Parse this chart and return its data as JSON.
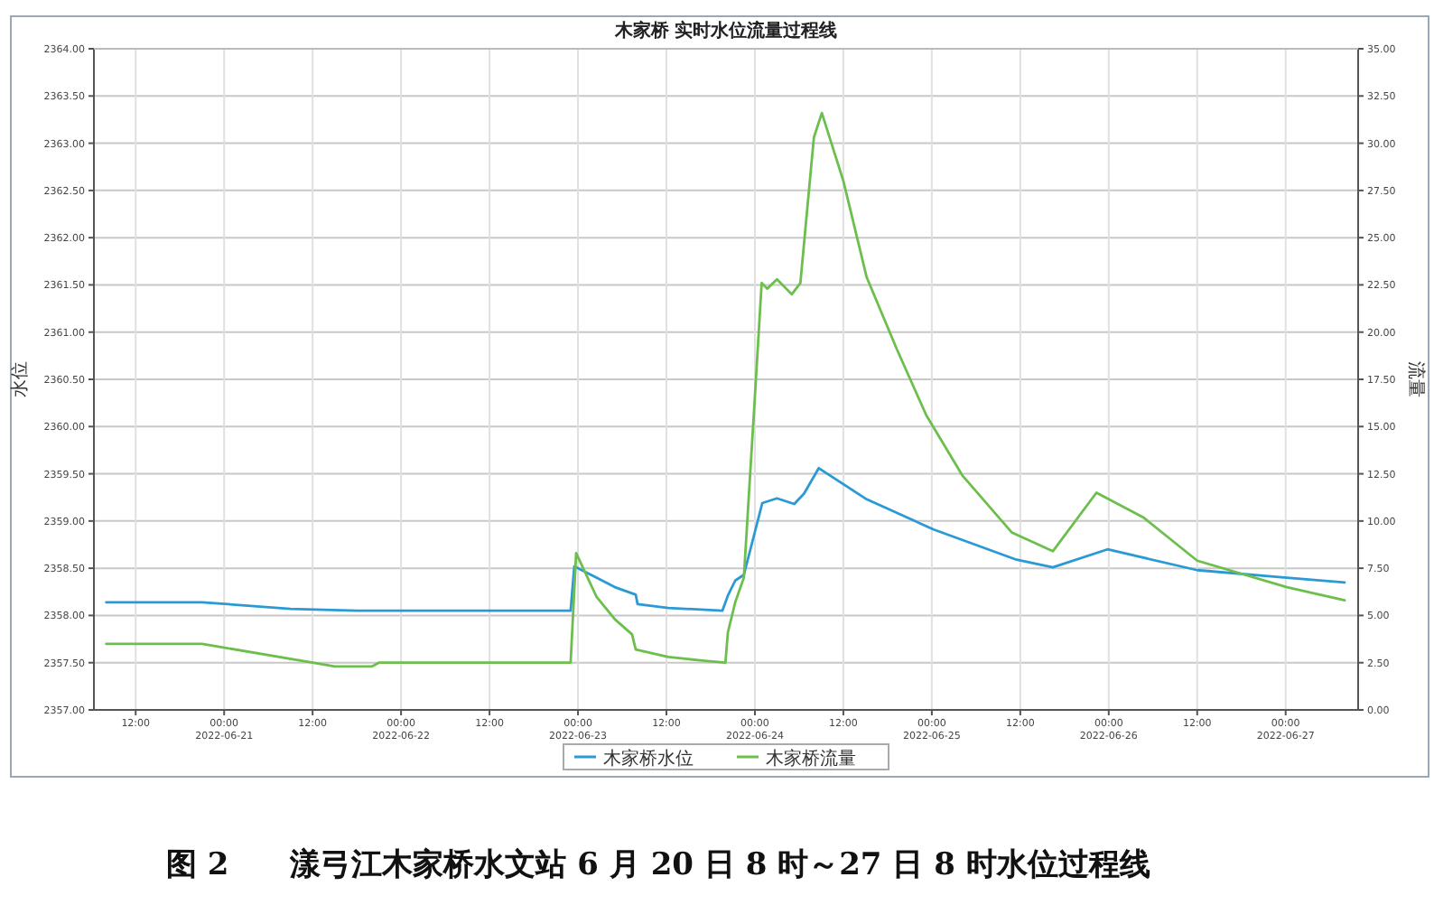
{
  "chart_data": {
    "type": "line",
    "title": "木家桥 实时水位流量过程线",
    "ylabel": "水位",
    "y2label": "流量",
    "xlim": [
      "2022-06-20T06:20",
      "2022-06-27T09:50"
    ],
    "xticks": [
      {
        "value": "2022-06-20T12:00",
        "label": "12:00"
      },
      {
        "value": "2022-06-21T00:00",
        "label": "00:00\n2022-06-21"
      },
      {
        "value": "2022-06-21T12:00",
        "label": "12:00"
      },
      {
        "value": "2022-06-22T00:00",
        "label": "00:00\n2022-06-22"
      },
      {
        "value": "2022-06-22T12:00",
        "label": "12:00"
      },
      {
        "value": "2022-06-23T00:00",
        "label": "00:00\n2022-06-23"
      },
      {
        "value": "2022-06-23T12:00",
        "label": "12:00"
      },
      {
        "value": "2022-06-24T00:00",
        "label": "00:00\n2022-06-24"
      },
      {
        "value": "2022-06-24T12:00",
        "label": "12:00"
      },
      {
        "value": "2022-06-25T00:00",
        "label": "00:00\n2022-06-25"
      },
      {
        "value": "2022-06-25T12:00",
        "label": "12:00"
      },
      {
        "value": "2022-06-26T00:00",
        "label": "00:00\n2022-06-26"
      },
      {
        "value": "2022-06-26T12:00",
        "label": "12:00"
      },
      {
        "value": "2022-06-27T00:00",
        "label": "00:00\n2022-06-27"
      }
    ],
    "ylim": [
      2357,
      2364
    ],
    "yticks": [
      {
        "value": 2357,
        "label": "2357.00"
      },
      {
        "value": 2357.5,
        "label": "2357.50"
      },
      {
        "value": 2358,
        "label": "2358.00"
      },
      {
        "value": 2358.5,
        "label": "2358.50"
      },
      {
        "value": 2359,
        "label": "2359.00"
      },
      {
        "value": 2359.5,
        "label": "2359.50"
      },
      {
        "value": 2360,
        "label": "2360.00"
      },
      {
        "value": 2360.5,
        "label": "2360.50"
      },
      {
        "value": 2361,
        "label": "2361.00"
      },
      {
        "value": 2361.5,
        "label": "2361.50"
      },
      {
        "value": 2362,
        "label": "2362.00"
      },
      {
        "value": 2362.5,
        "label": "2362.50"
      },
      {
        "value": 2363,
        "label": "2363.00"
      },
      {
        "value": 2363.5,
        "label": "2363.50"
      },
      {
        "value": 2364,
        "label": "2364.00"
      }
    ],
    "y2lim": [
      0,
      35
    ],
    "y2ticks": [
      {
        "value": 0,
        "label": "0.00"
      },
      {
        "value": 2.5,
        "label": "2.50"
      },
      {
        "value": 5,
        "label": "5.00"
      },
      {
        "value": 7.5,
        "label": "7.50"
      },
      {
        "value": 10,
        "label": "10.00"
      },
      {
        "value": 12.5,
        "label": "12.50"
      },
      {
        "value": 15,
        "label": "15.00"
      },
      {
        "value": 17.5,
        "label": "17.50"
      },
      {
        "value": 20,
        "label": "20.00"
      },
      {
        "value": 22.5,
        "label": "22.50"
      },
      {
        "value": 25,
        "label": "25.00"
      },
      {
        "value": 27.5,
        "label": "27.50"
      },
      {
        "value": 30,
        "label": "30.00"
      },
      {
        "value": 32.5,
        "label": "32.50"
      },
      {
        "value": 35,
        "label": "35.00"
      }
    ],
    "grid": true,
    "legend": "bottom",
    "series": [
      {
        "name": "木家桥水位",
        "color": "#2b9ad4",
        "x": [
          "2022-06-20T08:00",
          "2022-06-20T21:00",
          "2022-06-21T09:00",
          "2022-06-21T18:00",
          "2022-06-22T23:00",
          "2022-06-22T23:30",
          "2022-06-23T02:30",
          "2022-06-23T05:00",
          "2022-06-23T07:50",
          "2022-06-23T08:05",
          "2022-06-23T12:15",
          "2022-06-23T19:35",
          "2022-06-23T20:20",
          "2022-06-23T21:20",
          "2022-06-23T22:30",
          "2022-06-23T22:50",
          "2022-06-24T01:00",
          "2022-06-24T03:00",
          "2022-06-24T05:20",
          "2022-06-24T06:40",
          "2022-06-24T08:40",
          "2022-06-24T15:10",
          "2022-06-25T00:15",
          "2022-06-25T11:30",
          "2022-06-25T16:25",
          "2022-06-25T23:50",
          "2022-06-26T12:00",
          "2022-06-27T00:10",
          "2022-06-27T08:00"
        ],
        "values": [
          2358.14,
          2358.14,
          2358.07,
          2358.05,
          2358.05,
          2358.52,
          2358.4,
          2358.3,
          2358.22,
          2358.12,
          2358.08,
          2358.05,
          2358.21,
          2358.37,
          2358.43,
          2358.53,
          2359.19,
          2359.24,
          2359.18,
          2359.29,
          2359.56,
          2359.23,
          2358.91,
          2358.59,
          2358.51,
          2358.7,
          2358.48,
          2358.4,
          2358.35
        ]
      },
      {
        "name": "木家桥流量",
        "color": "#6cbf4c",
        "axis": "y2",
        "x": [
          "2022-06-20T08:00",
          "2022-06-20T21:00",
          "2022-06-21T12:00",
          "2022-06-21T15:00",
          "2022-06-21T20:00",
          "2022-06-21T21:00",
          "2022-06-22T23:00",
          "2022-06-22T23:45",
          "2022-06-23T02:30",
          "2022-06-23T05:00",
          "2022-06-23T07:20",
          "2022-06-23T07:50",
          "2022-06-23T12:15",
          "2022-06-23T17:10",
          "2022-06-23T20:00",
          "2022-06-23T20:20",
          "2022-06-23T21:20",
          "2022-06-23T22:30",
          "2022-06-24T00:00",
          "2022-06-24T00:55",
          "2022-06-24T01:40",
          "2022-06-24T03:00",
          "2022-06-24T05:00",
          "2022-06-24T06:10",
          "2022-06-24T08:00",
          "2022-06-24T09:05",
          "2022-06-24T12:00",
          "2022-06-24T15:10",
          "2022-06-24T19:15",
          "2022-06-24T23:15",
          "2022-06-25T04:10",
          "2022-06-25T10:50",
          "2022-06-25T16:25",
          "2022-06-25T22:20",
          "2022-06-26T04:40",
          "2022-06-26T12:00",
          "2022-06-27T00:10",
          "2022-06-27T08:00"
        ],
        "values": [
          3.5,
          3.5,
          2.5,
          2.3,
          2.3,
          2.5,
          2.5,
          8.3,
          6,
          4.8,
          4,
          3.2,
          2.8,
          2.6,
          2.5,
          4.1,
          5.7,
          7,
          16.6,
          22.6,
          22.3,
          22.8,
          22,
          22.6,
          30.3,
          31.6,
          28,
          22.9,
          19.1,
          15.6,
          12.4,
          9.4,
          8.4,
          11.5,
          10.2,
          7.9,
          6.5,
          5.8
        ]
      }
    ],
    "annotations": [
      "图 2　　漾弓江木家桥水文站 6 月 20 日 8 时～27 日 8 时水位过程线"
    ]
  }
}
